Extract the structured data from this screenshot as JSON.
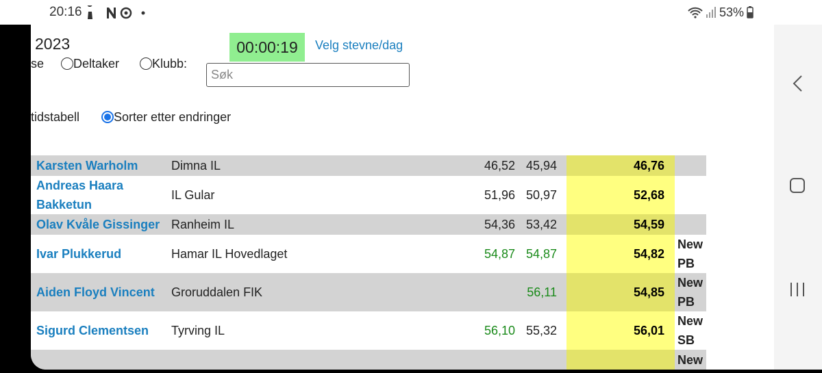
{
  "status_bar": {
    "time": "20:16",
    "battery": "53%"
  },
  "header": {
    "year": "2023",
    "timer": "00:00:19",
    "link": "Velg stevne/dag"
  },
  "filters": {
    "cut_label": "se",
    "options": [
      {
        "label": "Deltaker",
        "checked": false
      },
      {
        "label": "Klubb:",
        "checked": false
      }
    ],
    "search_placeholder": "Søk"
  },
  "sort": {
    "cut_label": "tidstabell",
    "options": [
      {
        "label": "Sorter etter endringer",
        "checked": true
      }
    ]
  },
  "table": {
    "rows": [
      {
        "name": "Karsten Warholm",
        "club": "Dimna IL",
        "sb": "46,52",
        "pb": "45,94",
        "result": "46,76"
      },
      {
        "name": "Andreas Haara Bakketun",
        "club": "IL Gular",
        "sb": "51,96",
        "pb": "50,97",
        "result": "52,68"
      },
      {
        "name": "Olav Kvåle Gissinger",
        "club": "Ranheim IL",
        "sb": "54,36",
        "pb": "53,42",
        "result": "54,59"
      },
      {
        "name": "Ivar Plukkerud",
        "club": "Hamar IL Hovedlaget",
        "sb": "54,87",
        "pb": "54,87",
        "result": "54,82",
        "note": "New PB",
        "green": [
          "sb",
          "pb"
        ]
      },
      {
        "name": "Aiden Floyd Vincent",
        "club": "Groruddalen FIK",
        "pb": "56,11",
        "result": "54,85",
        "note": "New PB",
        "green": [
          "pb"
        ]
      },
      {
        "name": "Sigurd Clementsen",
        "club": "Tyrving IL",
        "sb": "56,10",
        "pb": "55,32",
        "result": "56,01",
        "note": "New SB",
        "green": [
          "sb"
        ]
      },
      {
        "note": "New"
      }
    ]
  }
}
